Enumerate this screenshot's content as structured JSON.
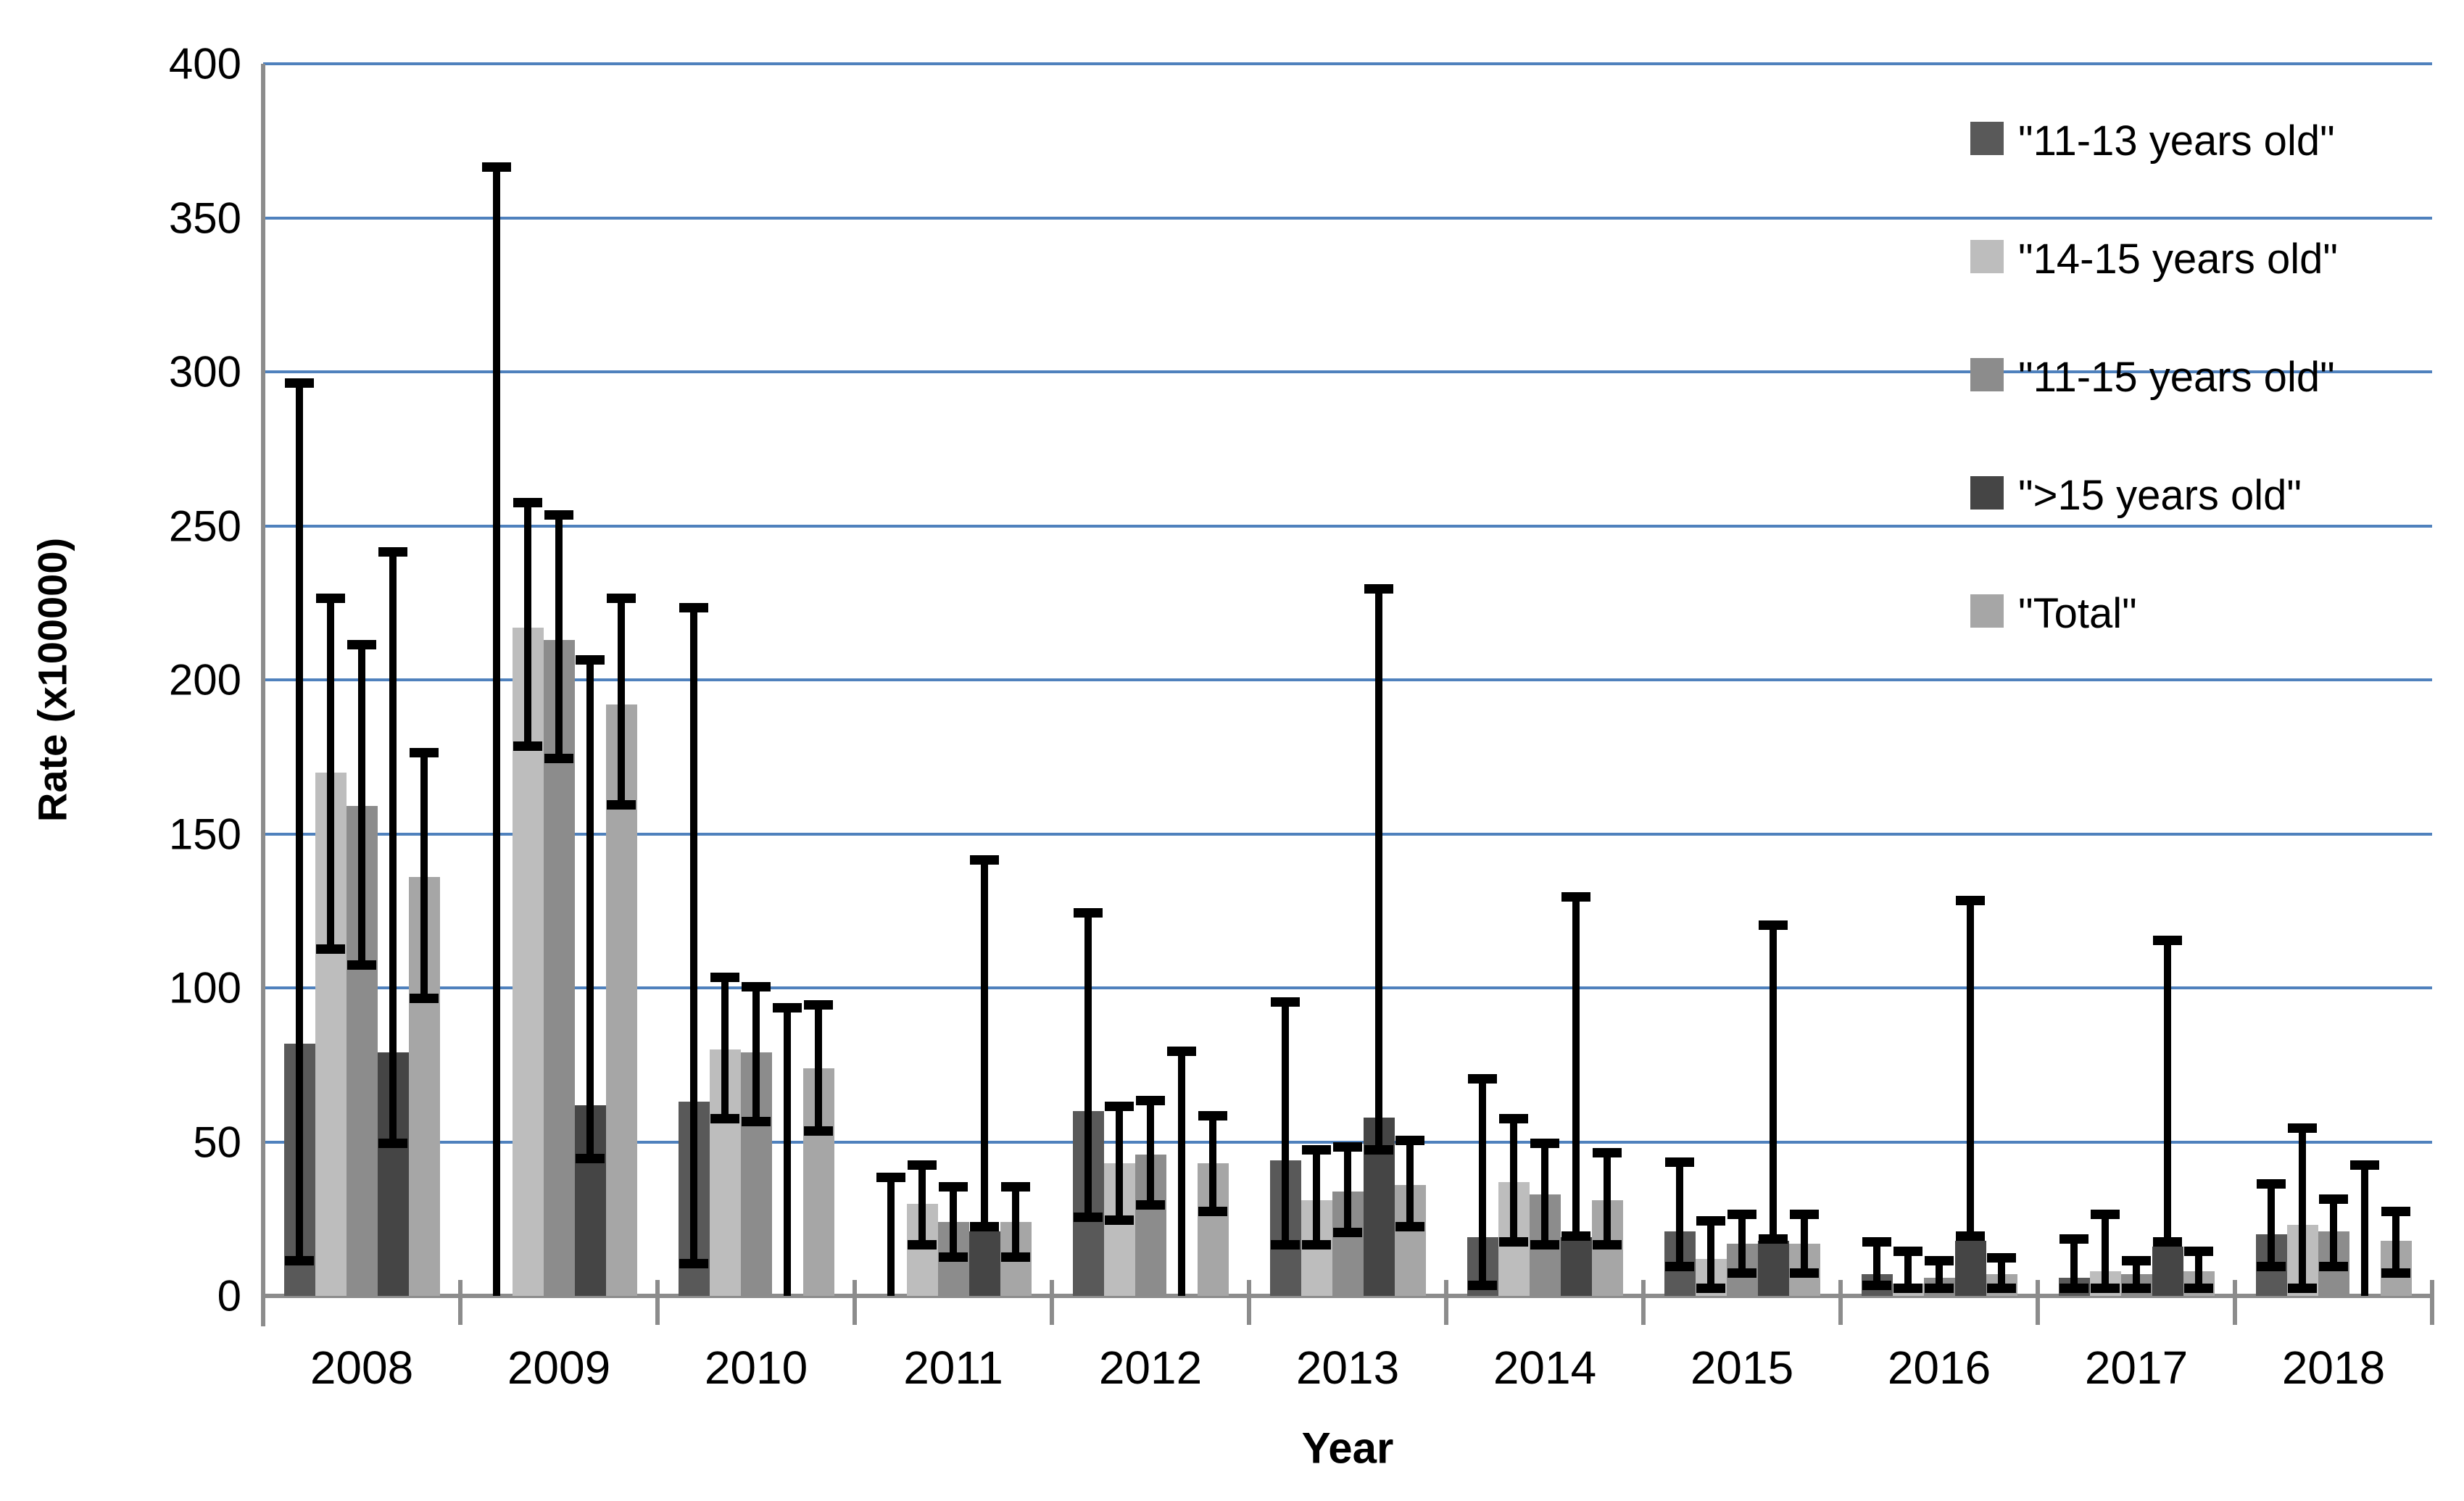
{
  "chart_data": {
    "type": "bar",
    "title": "",
    "xlabel": "Year",
    "ylabel": "Rate (x100000)",
    "ylim": [
      0,
      400
    ],
    "ytick_step": 50,
    "yticks": [
      0,
      50,
      100,
      150,
      200,
      250,
      300,
      350,
      400
    ],
    "grid": "horizontal",
    "legend_position": "top-right",
    "error_bars": true,
    "categories": [
      "2008",
      "2009",
      "2010",
      "2011",
      "2012",
      "2013",
      "2014",
      "2015",
      "2016",
      "2017",
      "2018"
    ],
    "series": [
      {
        "key": "11-13",
        "name": "\"11-13 years old\"",
        "color": "#595959",
        "values": [
          82,
          0,
          63,
          0,
          60,
          44,
          19,
          21,
          7,
          6,
          20
        ],
        "ci_low": [
          10,
          0,
          9,
          0,
          24,
          15,
          2,
          8,
          2,
          1,
          8
        ],
        "ci_high": [
          298,
          368,
          225,
          40,
          126,
          97,
          72,
          45,
          19,
          20,
          38
        ]
      },
      {
        "key": "14-15",
        "name": "\"14-15 years old\"",
        "color": "#bdbdbd",
        "values": [
          170,
          217,
          80,
          30,
          43,
          31,
          37,
          12,
          4,
          8,
          23
        ],
        "ci_low": [
          111,
          177,
          56,
          15,
          23,
          15,
          16,
          1,
          1,
          1,
          1
        ],
        "ci_high": [
          228,
          259,
          105,
          44,
          63,
          49,
          59,
          26,
          16,
          28,
          56
        ]
      },
      {
        "key": "11-15",
        "name": "\"11-15 years old\"",
        "color": "#8c8c8c",
        "values": [
          159,
          213,
          79,
          24,
          46,
          34,
          33,
          17,
          6,
          7,
          21
        ],
        "ci_low": [
          106,
          173,
          55,
          11,
          28,
          19,
          15,
          6,
          1,
          1,
          8
        ],
        "ci_high": [
          213,
          255,
          102,
          37,
          65,
          50,
          51,
          28,
          13,
          13,
          33
        ]
      },
      {
        "key": "gt15",
        "name": "\">15 years old\"",
        "color": "#454545",
        "values": [
          79,
          62,
          0,
          21,
          0,
          58,
          19,
          18,
          18,
          16,
          0
        ],
        "ci_low": [
          48,
          43,
          0,
          21,
          0,
          46,
          18,
          17,
          18,
          16,
          0
        ],
        "ci_high": [
          243,
          208,
          95,
          143,
          81,
          231,
          131,
          122,
          130,
          117,
          44
        ]
      },
      {
        "key": "total",
        "name": "\"Total\"",
        "color": "#a6a6a6",
        "values": [
          136,
          192,
          74,
          24,
          43,
          36,
          31,
          17,
          7,
          8,
          18
        ],
        "ci_low": [
          95,
          158,
          52,
          11,
          26,
          21,
          15,
          6,
          1,
          1,
          6
        ],
        "ci_high": [
          178,
          228,
          96,
          37,
          60,
          52,
          48,
          28,
          14,
          16,
          29
        ]
      }
    ],
    "colors": {
      "gridline": "#4f81bd",
      "axis": "#8c8c8c",
      "error": "#000000",
      "background": "#ffffff",
      "text": "#000000"
    }
  }
}
